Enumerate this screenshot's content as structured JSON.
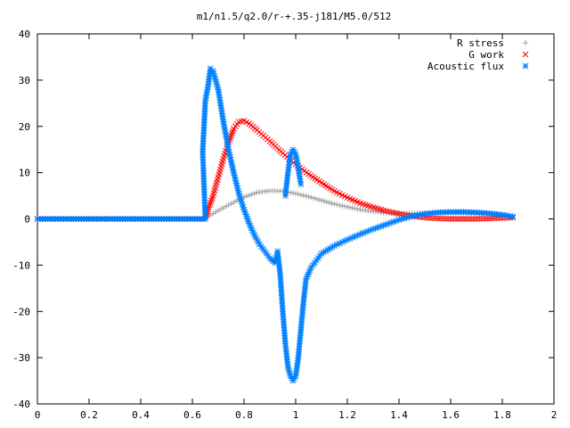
{
  "chart_data": {
    "type": "scatter",
    "title": "m1/n1.5/q2.0/r-+.35-j181/M5.0/512",
    "xlabel": "",
    "ylabel": "",
    "xlim": [
      0,
      2
    ],
    "ylim": [
      -40,
      40
    ],
    "xticks": [
      "0",
      "0.2",
      "0.4",
      "0.6",
      "0.8",
      "1",
      "1.2",
      "1.4",
      "1.6",
      "1.8",
      "2"
    ],
    "yticks": [
      "40",
      "30",
      "20",
      "10",
      "0",
      "-10",
      "-20",
      "-30",
      "-40"
    ],
    "grid": false,
    "legend_position": "top-right",
    "series": [
      {
        "name": "R stress",
        "marker": "plus",
        "color": "#a0a0a0",
        "points": [
          [
            0,
            0
          ],
          [
            0.1,
            0
          ],
          [
            0.2,
            0
          ],
          [
            0.3,
            0
          ],
          [
            0.4,
            0
          ],
          [
            0.5,
            0
          ],
          [
            0.6,
            0
          ],
          [
            0.65,
            0
          ],
          [
            0.66,
            0.5
          ],
          [
            0.7,
            1.8
          ],
          [
            0.75,
            3.3
          ],
          [
            0.8,
            4.7
          ],
          [
            0.85,
            5.7
          ],
          [
            0.9,
            6.1
          ],
          [
            0.95,
            6.0
          ],
          [
            1.0,
            5.5
          ],
          [
            1.05,
            4.8
          ],
          [
            1.1,
            4.0
          ],
          [
            1.15,
            3.2
          ],
          [
            1.2,
            2.6
          ],
          [
            1.25,
            2.0
          ],
          [
            1.3,
            1.6
          ],
          [
            1.35,
            1.3
          ],
          [
            1.4,
            1.2
          ],
          [
            1.45,
            1.2
          ],
          [
            1.5,
            1.3
          ],
          [
            1.55,
            1.3
          ],
          [
            1.6,
            1.3
          ],
          [
            1.65,
            1.3
          ],
          [
            1.7,
            1.2
          ],
          [
            1.75,
            1.1
          ],
          [
            1.8,
            0.8
          ],
          [
            1.84,
            0.3
          ]
        ]
      },
      {
        "name": "G work",
        "marker": "cross",
        "color": "#ff0000",
        "points": [
          [
            0,
            0
          ],
          [
            0.1,
            0
          ],
          [
            0.2,
            0
          ],
          [
            0.3,
            0
          ],
          [
            0.4,
            0
          ],
          [
            0.5,
            0
          ],
          [
            0.6,
            0
          ],
          [
            0.65,
            0
          ],
          [
            0.66,
            2
          ],
          [
            0.68,
            5
          ],
          [
            0.7,
            9
          ],
          [
            0.72,
            13
          ],
          [
            0.74,
            16.5
          ],
          [
            0.76,
            19.5
          ],
          [
            0.78,
            21
          ],
          [
            0.8,
            21.2
          ],
          [
            0.82,
            20.6
          ],
          [
            0.85,
            19.2
          ],
          [
            0.9,
            16.8
          ],
          [
            0.95,
            14.2
          ],
          [
            1.0,
            11.8
          ],
          [
            1.05,
            9.7
          ],
          [
            1.1,
            7.8
          ],
          [
            1.15,
            6.0
          ],
          [
            1.2,
            4.6
          ],
          [
            1.25,
            3.4
          ],
          [
            1.3,
            2.5
          ],
          [
            1.35,
            1.7
          ],
          [
            1.4,
            1.1
          ],
          [
            1.45,
            0.6
          ],
          [
            1.5,
            0.3
          ],
          [
            1.55,
            0.1
          ],
          [
            1.6,
            0
          ],
          [
            1.65,
            0
          ],
          [
            1.7,
            0
          ],
          [
            1.75,
            0.1
          ],
          [
            1.8,
            0.2
          ],
          [
            1.84,
            0.3
          ]
        ]
      },
      {
        "name": "Acoustic flux",
        "marker": "star",
        "color": "#0080ff",
        "points": [
          [
            0,
            0
          ],
          [
            0.1,
            0
          ],
          [
            0.2,
            0
          ],
          [
            0.3,
            0
          ],
          [
            0.4,
            0
          ],
          [
            0.5,
            0
          ],
          [
            0.6,
            0
          ],
          [
            0.65,
            0
          ],
          [
            0.64,
            14.5
          ],
          [
            0.65,
            25.5
          ],
          [
            0.66,
            28.5
          ],
          [
            0.67,
            32.5
          ],
          [
            0.68,
            32
          ],
          [
            0.7,
            28
          ],
          [
            0.72,
            21
          ],
          [
            0.74,
            15
          ],
          [
            0.76,
            10
          ],
          [
            0.78,
            5.5
          ],
          [
            0.8,
            2
          ],
          [
            0.82,
            -1
          ],
          [
            0.84,
            -3.5
          ],
          [
            0.86,
            -5.5
          ],
          [
            0.88,
            -7
          ],
          [
            0.9,
            -8.5
          ],
          [
            0.92,
            -9.5
          ],
          [
            0.93,
            -7
          ],
          [
            0.94,
            -12
          ],
          [
            0.95,
            -20
          ],
          [
            0.96,
            -27
          ],
          [
            0.97,
            -32
          ],
          [
            0.98,
            -34
          ],
          [
            0.99,
            -35
          ],
          [
            1.0,
            -34
          ],
          [
            1.01,
            -30
          ],
          [
            1.02,
            -24
          ],
          [
            1.03,
            -18
          ],
          [
            1.04,
            -13
          ],
          [
            1.06,
            -10.5
          ],
          [
            1.08,
            -9
          ],
          [
            1.1,
            -7.5
          ],
          [
            1.15,
            -5.8
          ],
          [
            1.2,
            -4.5
          ],
          [
            1.25,
            -3.3
          ],
          [
            1.3,
            -2.2
          ],
          [
            1.35,
            -1.2
          ],
          [
            1.4,
            -0.2
          ],
          [
            1.45,
            0.6
          ],
          [
            1.5,
            1.1
          ],
          [
            1.55,
            1.4
          ],
          [
            1.6,
            1.5
          ],
          [
            1.65,
            1.5
          ],
          [
            1.7,
            1.4
          ],
          [
            1.75,
            1.2
          ],
          [
            1.8,
            0.9
          ],
          [
            1.84,
            0.5
          ],
          [
            0.96,
            5
          ],
          [
            0.97,
            10
          ],
          [
            0.98,
            14
          ],
          [
            0.99,
            15
          ],
          [
            1.0,
            14
          ],
          [
            1.01,
            11
          ],
          [
            1.02,
            7.5
          ]
        ]
      }
    ]
  }
}
